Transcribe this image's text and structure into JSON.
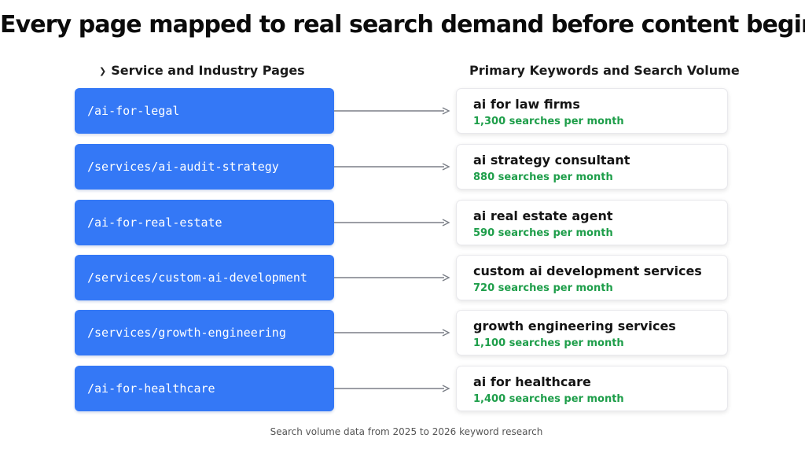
{
  "title": "Every page mapped to real search demand before content begins",
  "left_header": "Service and Industry Pages",
  "right_header": "Primary Keywords and Search Volume",
  "rows": [
    {
      "url": "/ai-for-legal",
      "keyword": "ai for law firms",
      "volume": "1,300 searches per month"
    },
    {
      "url": "/services/ai-audit-strategy",
      "keyword": "ai strategy consultant",
      "volume": "880 searches per month"
    },
    {
      "url": "/ai-for-real-estate",
      "keyword": "ai real estate agent",
      "volume": "590 searches per month"
    },
    {
      "url": "/services/custom-ai-development",
      "keyword": "custom ai development services",
      "volume": "720 searches per month"
    },
    {
      "url": "/services/growth-engineering",
      "keyword": "growth engineering services",
      "volume": "1,100 searches per month"
    },
    {
      "url": "/ai-for-healthcare",
      "keyword": "ai for healthcare",
      "volume": "1,400 searches per month"
    }
  ],
  "footnote": "Search volume data from 2025 to 2026 keyword research",
  "colors": {
    "url_box": "#3478f6",
    "volume_text": "#1e9e4a",
    "connector": "#7b7f87"
  }
}
